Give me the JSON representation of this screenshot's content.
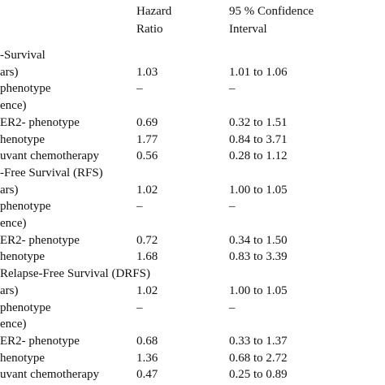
{
  "table": {
    "headers": {
      "hazard_ratio": "Hazard Ratio",
      "confidence_interval": "95 % Confidence Interval"
    },
    "rows": [
      {
        "label": "-Survival"
      },
      {
        "label": "ars)",
        "hr": "1.03",
        "ci": "1.01 to 1.06"
      },
      {
        "label": "phenotype",
        "hr": "–",
        "ci": "–"
      },
      {
        "label": "ence)"
      },
      {
        "label": "ER2- phenotype",
        "hr": "0.69",
        "ci": "0.32 to 1.51"
      },
      {
        "label": "henotype",
        "hr": "1.77",
        "ci": "0.84 to 3.71"
      },
      {
        "label": "uvant chemotherapy",
        "hr": "0.56",
        "ci": "0.28 to 1.12"
      },
      {
        "label": "-Free Survival (RFS)"
      },
      {
        "label": "ars)",
        "hr": "1.02",
        "ci": "1.00 to 1.05"
      },
      {
        "label": "phenotype",
        "hr": "–",
        "ci": "–"
      },
      {
        "label": "ence)"
      },
      {
        "label": "ER2- phenotype",
        "hr": "0.72",
        "ci": "0.34 to 1.50"
      },
      {
        "label": "henotype",
        "hr": "1.68",
        "ci": "0.83 to 3.39"
      },
      {
        "label": "Relapse-Free Survival (DRFS)"
      },
      {
        "label": "ars)",
        "hr": "1.02",
        "ci": "1.00 to 1.05"
      },
      {
        "label": "phenotype",
        "hr": "–",
        "ci": "–"
      },
      {
        "label": "ence)"
      },
      {
        "label": "ER2- phenotype",
        "hr": "0.68",
        "ci": "0.33 to 1.37"
      },
      {
        "label": "henotype",
        "hr": "1.36",
        "ci": "0.68 to 2.72"
      },
      {
        "label": "uvant chemotherapy",
        "hr": "0.47",
        "ci": "0.25 to 0.89"
      }
    ]
  }
}
